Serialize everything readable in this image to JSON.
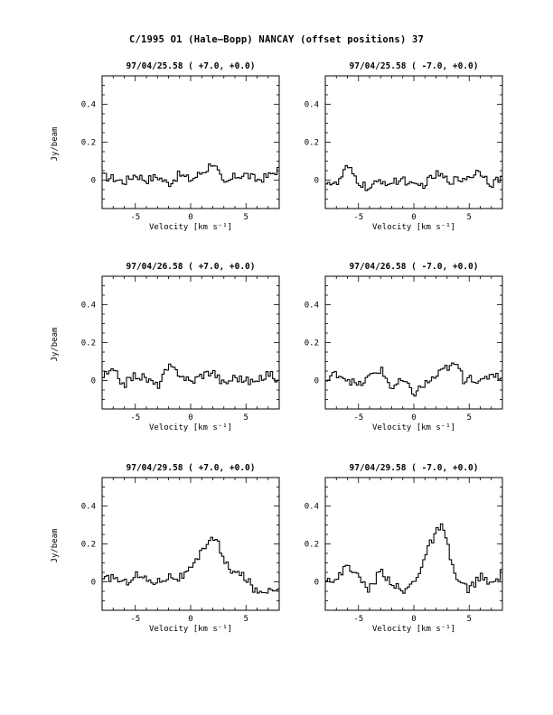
{
  "page": {
    "title": "C/1995 O1 (Hale–Bopp)   NANCAY     (offset positions)   37"
  },
  "chart_data": [
    {
      "type": "line",
      "title": "97/04/25.58  ( +7.0, +0.0)",
      "xlabel": "Velocity [km s⁻¹]",
      "ylabel": "Jy/beam",
      "xlim": [
        -8,
        8
      ],
      "ylim": [
        -0.15,
        0.55
      ],
      "xticks": [
        "-5",
        "0",
        "5"
      ],
      "yticks": [
        "0",
        "0.2",
        "0.4"
      ],
      "x": [
        -8,
        -7,
        -6,
        -5,
        -4,
        -3,
        -2,
        -1,
        0,
        1,
        1.5,
        2,
        2.5,
        3,
        4,
        5,
        6,
        7,
        8
      ],
      "series": [
        {
          "values": [
            0.02,
            0.01,
            -0.01,
            0.03,
            0.0,
            0.02,
            -0.02,
            0.03,
            0.0,
            0.04,
            0.06,
            0.1,
            0.04,
            -0.03,
            0.02,
            0.03,
            0.0,
            0.02,
            0.06
          ]
        }
      ]
    },
    {
      "type": "line",
      "title": "97/04/25.58  ( -7.0, +0.0)",
      "xlabel": "Velocity [km s⁻¹]",
      "ylabel": "",
      "xlim": [
        -8,
        8
      ],
      "ylim": [
        -0.15,
        0.55
      ],
      "xticks": [
        "-5",
        "0",
        "5"
      ],
      "yticks": [
        "0",
        "0.2",
        "0.4"
      ],
      "x": [
        -8,
        -7,
        -6,
        -5,
        -4,
        -3,
        -2,
        -1,
        0,
        1,
        2,
        2.5,
        3,
        4,
        5,
        6,
        7,
        8
      ],
      "series": [
        {
          "values": [
            0.0,
            -0.03,
            0.07,
            -0.01,
            -0.05,
            0.0,
            -0.02,
            0.01,
            -0.04,
            -0.02,
            0.03,
            0.02,
            0.0,
            0.0,
            0.02,
            0.05,
            -0.02,
            0.02
          ]
        }
      ]
    },
    {
      "type": "line",
      "title": "97/04/26.58  ( +7.0, +0.0)",
      "xlabel": "Velocity [km s⁻¹]",
      "ylabel": "Jy/beam",
      "xlim": [
        -8,
        8
      ],
      "ylim": [
        -0.15,
        0.55
      ],
      "xticks": [
        "-5",
        "0",
        "5"
      ],
      "yticks": [
        "0",
        "0.2",
        "0.4"
      ],
      "x": [
        -8,
        -7,
        -6,
        -5,
        -4,
        -3,
        -2,
        -1,
        0,
        1,
        2,
        3,
        4,
        5,
        6,
        7,
        8
      ],
      "series": [
        {
          "values": [
            0.02,
            0.05,
            -0.02,
            0.03,
            0.01,
            -0.03,
            0.07,
            0.04,
            -0.01,
            0.03,
            0.05,
            -0.02,
            0.02,
            0.0,
            -0.01,
            0.04,
            0.0
          ]
        }
      ]
    },
    {
      "type": "line",
      "title": "97/04/26.58  ( -7.0, +0.0)",
      "xlabel": "Velocity [km s⁻¹]",
      "ylabel": "",
      "xlim": [
        -8,
        8
      ],
      "ylim": [
        -0.15,
        0.55
      ],
      "xticks": [
        "-5",
        "0",
        "5"
      ],
      "yticks": [
        "0",
        "0.2",
        "0.4"
      ],
      "x": [
        -8,
        -7,
        -6,
        -5,
        -4,
        -3,
        -2,
        -1,
        0,
        1,
        2,
        3,
        4,
        4.5,
        5,
        6,
        7,
        8
      ],
      "series": [
        {
          "values": [
            -0.01,
            0.04,
            0.01,
            -0.03,
            0.02,
            0.06,
            -0.04,
            0.0,
            -0.07,
            -0.02,
            0.02,
            0.07,
            0.08,
            0.0,
            0.03,
            -0.02,
            0.04,
            0.02
          ]
        }
      ]
    },
    {
      "type": "line",
      "title": "97/04/29.58  ( +7.0, +0.0)",
      "xlabel": "Velocity [km s⁻¹]",
      "ylabel": "Jy/beam",
      "xlim": [
        -8,
        8
      ],
      "ylim": [
        -0.15,
        0.55
      ],
      "xticks": [
        "-5",
        "0",
        "5"
      ],
      "yticks": [
        "0",
        "0.2",
        "0.4"
      ],
      "x": [
        -8,
        -7,
        -6,
        -5,
        -4,
        -3,
        -2,
        -1,
        0,
        0.5,
        1,
        1.5,
        2,
        2.5,
        3,
        4,
        5,
        6,
        7,
        8
      ],
      "series": [
        {
          "values": [
            0.0,
            0.03,
            -0.01,
            0.04,
            0.01,
            0.0,
            0.03,
            0.02,
            0.06,
            0.1,
            0.16,
            0.21,
            0.24,
            0.2,
            0.1,
            0.05,
            0.02,
            -0.06,
            -0.04,
            -0.02
          ]
        }
      ]
    },
    {
      "type": "line",
      "title": "97/04/29.58  ( -7.0, +0.0)",
      "xlabel": "Velocity [km s⁻¹]",
      "ylabel": "",
      "xlim": [
        -8,
        8
      ],
      "ylim": [
        -0.15,
        0.55
      ],
      "xticks": [
        "-5",
        "0",
        "5"
      ],
      "yticks": [
        "0",
        "0.2",
        "0.4"
      ],
      "x": [
        -8,
        -7,
        -6,
        -5,
        -4,
        -3,
        -2,
        -1,
        0,
        0.5,
        1,
        1.5,
        2,
        2.5,
        3,
        3.5,
        4,
        5,
        6,
        7,
        8
      ],
      "series": [
        {
          "values": [
            0.03,
            0.0,
            0.1,
            0.02,
            -0.04,
            0.06,
            0.0,
            -0.06,
            0.0,
            0.06,
            0.13,
            0.2,
            0.26,
            0.29,
            0.2,
            0.08,
            0.0,
            -0.04,
            0.03,
            -0.02,
            0.05
          ]
        }
      ]
    }
  ]
}
